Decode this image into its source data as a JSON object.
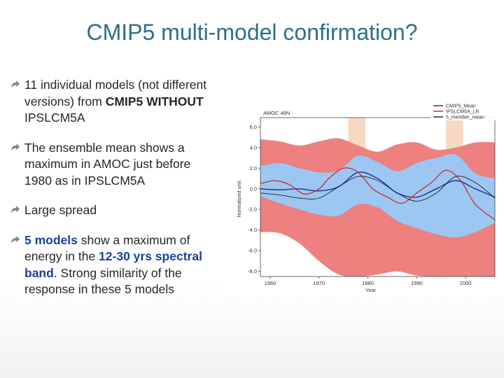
{
  "title": "CMIP5 multi-model confirmation?",
  "bullets": [
    {
      "parts": [
        {
          "text": "11 individual models (not different versions) from ",
          "style": ""
        },
        {
          "text": "CMIP5 WITHOUT",
          "style": "bold"
        },
        {
          "text": " IPSLCM5A",
          "style": ""
        }
      ]
    },
    {
      "parts": [
        {
          "text": "The ensemble mean shows a maximum in AMOC just before 1980 as in IPSLCM5A",
          "style": ""
        }
      ]
    },
    {
      "parts": [
        {
          "text": "Large spread",
          "style": ""
        }
      ]
    },
    {
      "parts": [
        {
          "text": "5 models",
          "style": "hl"
        },
        {
          "text": " show a maximum of energy in the ",
          "style": ""
        },
        {
          "text": "12-30 yrs spectral band",
          "style": "hl"
        },
        {
          "text": ". Strong similarity of the response in these 5 models",
          "style": ""
        }
      ]
    }
  ],
  "chart_data": {
    "type": "line",
    "title": "AMOC 48N",
    "xlabel": "Year",
    "ylabel": "Normalized unit",
    "xlim": [
      1958,
      2006
    ],
    "ylim": [
      -8.5,
      6.5
    ],
    "xticks": [
      1960,
      1970,
      1980,
      1990,
      2000
    ],
    "yticks": [
      -8.0,
      -6.0,
      -4.0,
      -2.0,
      0.0,
      2.0,
      4.0,
      6.0
    ],
    "ytick_labels": [
      "-8.0",
      "-6.0",
      "-4.0",
      "-2.0",
      "0.0",
      "2.0",
      "4.0",
      "6.0"
    ],
    "highlight_periods": [
      [
        1976,
        1979.5
      ],
      [
        1996,
        1999.5
      ]
    ],
    "highlight_color": "#f7d9c3",
    "legend": {
      "placement": "top-right",
      "entries": [
        "CMIP5_Mean",
        "IPSLCM5A_LR",
        "5_member_mean"
      ]
    },
    "bands": [
      {
        "color": "#ee8080",
        "x": [
          1958,
          1962,
          1966,
          1970,
          1974,
          1978,
          1982,
          1986,
          1990,
          1994,
          1998,
          2002,
          2006
        ],
        "upper": [
          4.8,
          4.6,
          4.2,
          4.6,
          4.9,
          4.2,
          3.6,
          4.3,
          4.5,
          3.8,
          4.0,
          4.5,
          4.5
        ],
        "lower": [
          -4.2,
          -4.3,
          -5.3,
          -7.0,
          -8.3,
          -8.5,
          -8.3,
          -8.0,
          -8.4,
          -8.5,
          -8.5,
          -8.5,
          -8.5
        ]
      },
      {
        "color": "#9bc7f2",
        "x": [
          1958,
          1962,
          1966,
          1970,
          1974,
          1978,
          1982,
          1986,
          1990,
          1994,
          1998,
          2002,
          2006
        ],
        "upper": [
          2.2,
          2.5,
          2.0,
          1.6,
          1.8,
          3.2,
          2.6,
          1.7,
          2.5,
          3.0,
          3.3,
          1.5,
          1.0
        ],
        "lower": [
          -0.7,
          -1.4,
          -2.0,
          -2.5,
          -2.6,
          -1.5,
          -1.8,
          -3.1,
          -3.8,
          -4.4,
          -4.7,
          -4.2,
          -3.3
        ]
      }
    ],
    "series": [
      {
        "name": "CMIP5_Mean",
        "color": "#1f2f8f",
        "width": 1.4,
        "x": [
          1958,
          1962,
          1966,
          1970,
          1974,
          1978,
          1982,
          1986,
          1990,
          1994,
          1998,
          2002,
          2006
        ],
        "y": [
          0.0,
          -0.1,
          0.0,
          -0.2,
          0.2,
          1.6,
          1.0,
          -0.4,
          -0.8,
          0.0,
          0.8,
          0.0,
          -0.8
        ]
      },
      {
        "name": "IPSLCM5A_LR",
        "color": "#d81e1e",
        "width": 1.2,
        "x": [
          1958,
          1961,
          1964,
          1967,
          1970,
          1972,
          1975,
          1978,
          1981,
          1984,
          1987,
          1990,
          1993,
          1996,
          1999,
          2002,
          2006
        ],
        "y": [
          0.5,
          0.8,
          0.4,
          -0.5,
          0.0,
          1.0,
          2.0,
          1.6,
          0.0,
          -0.8,
          -1.4,
          -0.4,
          0.6,
          1.8,
          0.8,
          -1.5,
          -3.0
        ]
      },
      {
        "name": "5_member_mean",
        "color": "#222222",
        "width": 0.9,
        "x": [
          1958,
          1962,
          1966,
          1970,
          1974,
          1978,
          1982,
          1986,
          1990,
          1994,
          1998,
          2002,
          2006
        ],
        "y": [
          -0.4,
          -0.6,
          -0.9,
          -0.9,
          0.2,
          1.2,
          0.8,
          -0.4,
          -1.2,
          -0.4,
          1.2,
          0.6,
          -0.9
        ]
      }
    ]
  }
}
